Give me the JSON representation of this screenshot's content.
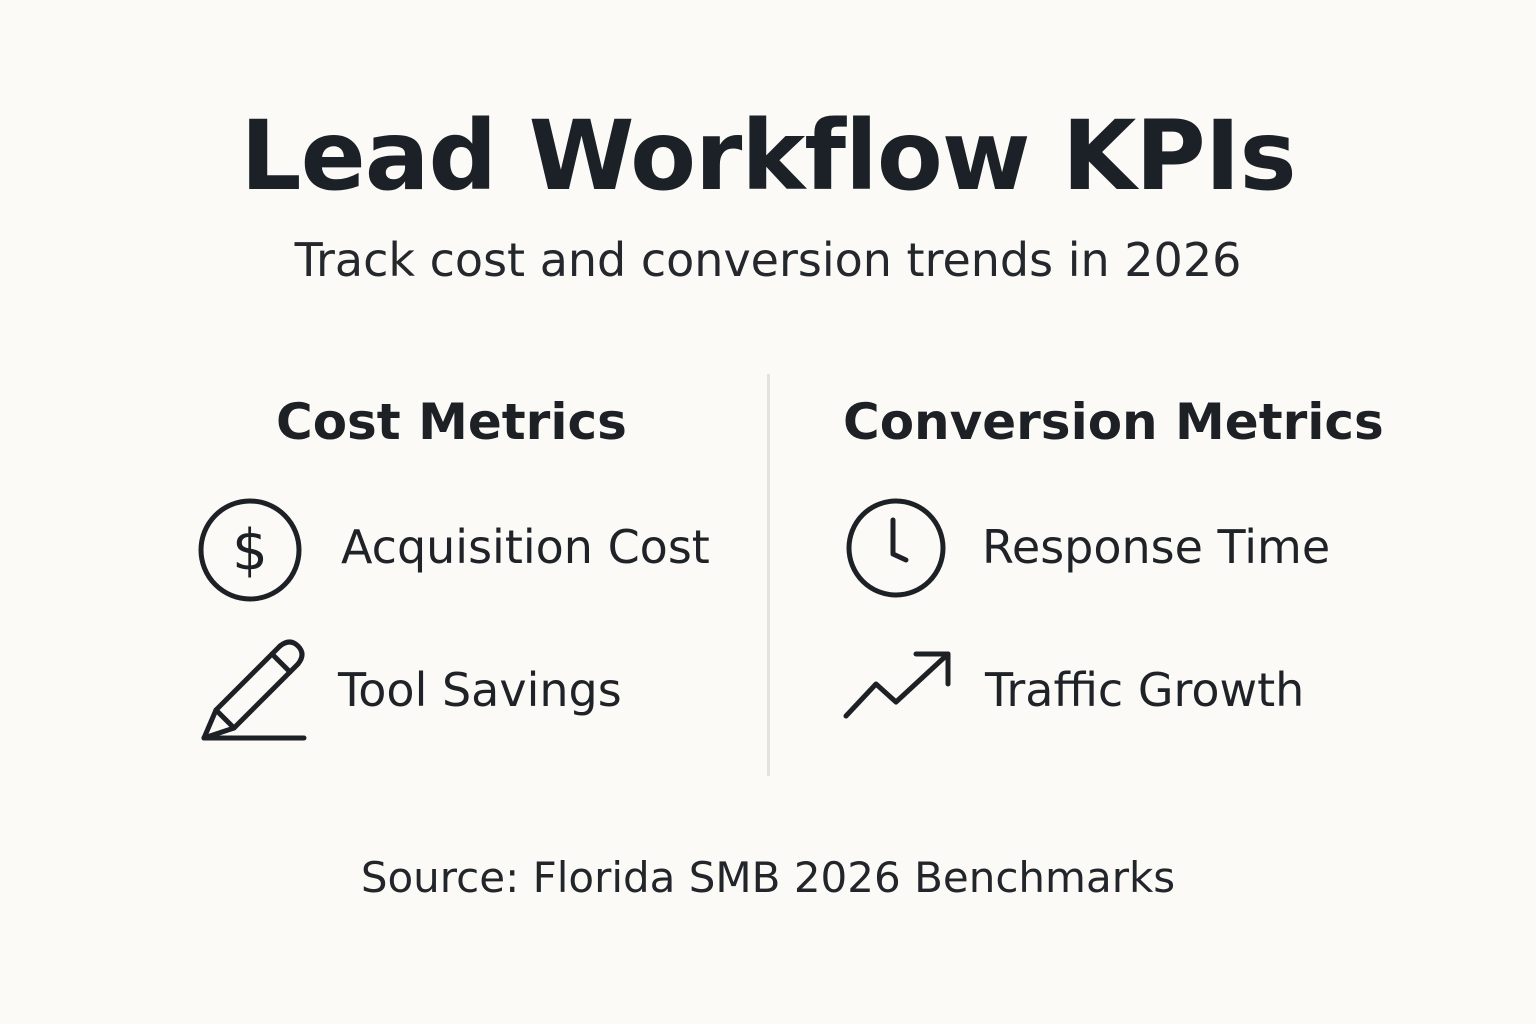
{
  "title": "Lead Workflow KPIs",
  "subtitle": "Track cost and conversion trends in 2026",
  "columns": [
    {
      "heading": "Cost Metrics",
      "items": [
        {
          "icon": "dollar-circle-icon",
          "label": "Acquisition Cost"
        },
        {
          "icon": "pencil-icon",
          "label": "Tool Savings"
        }
      ]
    },
    {
      "heading": "Conversion Metrics",
      "items": [
        {
          "icon": "clock-icon",
          "label": "Response Time"
        },
        {
          "icon": "trend-up-arrow-icon",
          "label": "Traffic Growth"
        }
      ]
    }
  ],
  "source": "Source: Florida SMB 2026 Benchmarks",
  "colors": {
    "background": "#fbfaf6",
    "text": "#1d2126",
    "divider": "#e3e2dd"
  }
}
